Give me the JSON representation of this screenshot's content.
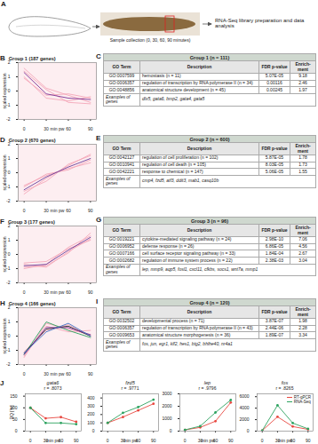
{
  "schematic": {
    "label": "A",
    "sample_text": "Sample collection (0, 30, 60, 90 minutes)",
    "library_text": "RNA-Seq library preparation and data analysis"
  },
  "chart_data": [
    {
      "label": "B",
      "type": "line",
      "title": "Group 1 (187 genes)",
      "x_label": "min pw",
      "y_label": "scaled expression",
      "x": [
        0,
        30,
        60,
        90
      ],
      "xlim": [
        -8,
        98
      ],
      "xticks": [
        0,
        30,
        60,
        90
      ],
      "ylim": [
        -2,
        2
      ],
      "yticks": [
        -2,
        -1,
        0,
        1,
        2
      ],
      "series": [
        {
          "color": "#f4a7b9",
          "values": [
            1.6,
            0.2,
            -0.3,
            -0.8
          ]
        },
        {
          "color": "#f4a7b9",
          "values": [
            1.0,
            -0.5,
            -0.7,
            -0.4
          ]
        },
        {
          "color": "#f4a7b9",
          "values": [
            1.4,
            0.1,
            -0.8,
            -0.9
          ]
        },
        {
          "color": "#f4a7b9",
          "values": [
            0.9,
            -0.3,
            -0.2,
            -0.5
          ]
        },
        {
          "color": "#7b3294",
          "values": [
            1.3,
            -0.2,
            -0.5,
            -0.6
          ]
        }
      ]
    },
    {
      "label": "D",
      "type": "line",
      "title": "Group 2 (670 genes)",
      "x_label": "min pw",
      "y_label": "scaled expression",
      "x": [
        0,
        30,
        60,
        90
      ],
      "xlim": [
        -8,
        98
      ],
      "xticks": [
        0,
        30,
        60,
        90
      ],
      "ylim": [
        -2,
        2
      ],
      "yticks": [
        -2,
        -1,
        0,
        1,
        2
      ],
      "series": [
        {
          "color": "#f4a7b9",
          "values": [
            -1.5,
            -0.4,
            0.5,
            1.3
          ]
        },
        {
          "color": "#f4a7b9",
          "values": [
            -1.0,
            -0.1,
            0.2,
            0.9
          ]
        },
        {
          "color": "#f4a7b9",
          "values": [
            -1.3,
            -0.6,
            0.6,
            1.2
          ]
        },
        {
          "color": "#f4a7b9",
          "values": [
            -0.9,
            -0.2,
            0.3,
            0.7
          ]
        },
        {
          "color": "#6a3d9a",
          "values": [
            -1.2,
            -0.3,
            0.4,
            1.0
          ]
        }
      ]
    },
    {
      "label": "F",
      "type": "line",
      "title": "Group 3 (177 genes)",
      "x_label": "min pw",
      "y_label": "scaled expression",
      "x": [
        0,
        30,
        60,
        90
      ],
      "xlim": [
        -8,
        98
      ],
      "xticks": [
        0,
        30,
        60,
        90
      ],
      "ylim": [
        -2,
        2
      ],
      "yticks": [
        -2,
        -1,
        0,
        1,
        2
      ],
      "series": [
        {
          "color": "#f4a7b9",
          "values": [
            -0.9,
            -0.8,
            0.1,
            1.5
          ]
        },
        {
          "color": "#f4a7b9",
          "values": [
            -0.6,
            -0.5,
            0.4,
            1.0
          ]
        },
        {
          "color": "#f4a7b9",
          "values": [
            -1.0,
            -0.7,
            0.5,
            1.3
          ]
        },
        {
          "color": "#f4a7b9",
          "values": [
            -0.7,
            -0.9,
            0.2,
            1.1
          ]
        },
        {
          "color": "#6a3d9a",
          "values": [
            -0.8,
            -0.7,
            0.3,
            1.2
          ]
        }
      ]
    },
    {
      "label": "H",
      "type": "line",
      "title": "Group 4 (166 genes)",
      "x_label": "min pw",
      "y_label": "scaled expression",
      "x": [
        0,
        30,
        60,
        90
      ],
      "xlim": [
        -8,
        98
      ],
      "xticks": [
        0,
        30,
        60,
        90
      ],
      "ylim": [
        -2,
        2
      ],
      "yticks": [
        -2,
        -1,
        0,
        1,
        2
      ],
      "series": [
        {
          "color": "#f4a7b9",
          "values": [
            -1.5,
            0.9,
            0.5,
            0.1
          ]
        },
        {
          "color": "#f4a7b9",
          "values": [
            -1.1,
            0.4,
            0.8,
            0.0
          ]
        },
        {
          "color": "#f4a7b9",
          "values": [
            -1.4,
            0.7,
            0.3,
            0.4
          ]
        },
        {
          "color": "#2ca25f",
          "values": [
            -1.3,
            1.0,
            0.4,
            -0.1
          ]
        },
        {
          "color": "#222222",
          "values": [
            -1.2,
            0.5,
            0.7,
            0.0
          ]
        },
        {
          "color": "#7b3294",
          "values": [
            -1.3,
            0.6,
            0.6,
            0.1
          ]
        },
        {
          "color": "#3a6fc4",
          "values": [
            -1.2,
            0.3,
            0.9,
            0.0
          ]
        }
      ]
    },
    {
      "label": "J",
      "type": "line",
      "title": "gata6",
      "subtitle": "r = .8073",
      "x_label": "min pw",
      "y_label": "RQ [%]",
      "x": [
        0,
        30,
        60,
        90
      ],
      "xlim": [
        -10,
        100
      ],
      "xticks": [
        0,
        30,
        60,
        90
      ],
      "ylim": [
        0,
        160
      ],
      "yticks": [
        0,
        50,
        100,
        150
      ],
      "series": [
        {
          "name": "RT-qPCR",
          "color": "#e8473f",
          "marker": "circle",
          "values": [
            100,
            55,
            60,
            40
          ]
        },
        {
          "name": "RNA-Seq",
          "color": "#2ca25f",
          "marker": "circle",
          "values": [
            100,
            35,
            35,
            30
          ]
        }
      ]
    },
    {
      "type": "line",
      "title": "fzd5",
      "subtitle": "r = .9771",
      "x_label": "min pw",
      "x": [
        0,
        30,
        60,
        90
      ],
      "xlim": [
        -10,
        100
      ],
      "xticks": [
        0,
        30,
        60,
        90
      ],
      "ylim": [
        0,
        450
      ],
      "yticks": [
        0,
        100,
        200,
        300,
        400
      ],
      "series": [
        {
          "name": "RT-qPCR",
          "color": "#e8473f",
          "marker": "circle",
          "values": [
            100,
            170,
            250,
            330
          ]
        },
        {
          "name": "RNA-Seq",
          "color": "#2ca25f",
          "marker": "circle",
          "values": [
            100,
            220,
            290,
            380
          ]
        }
      ]
    },
    {
      "type": "line",
      "title": "lep",
      "subtitle": "r = .9796",
      "x_label": "min pw",
      "x": [
        0,
        30,
        60,
        90
      ],
      "xlim": [
        -10,
        100
      ],
      "xticks": [
        0,
        30,
        60,
        90
      ],
      "ylim": [
        0,
        3000
      ],
      "yticks": [
        0,
        1000,
        2000,
        3000
      ],
      "series": [
        {
          "name": "RT-qPCR",
          "color": "#e8473f",
          "marker": "circle",
          "values": [
            100,
            300,
            800,
            2300
          ]
        },
        {
          "name": "RNA-Seq",
          "color": "#2ca25f",
          "marker": "circle",
          "values": [
            100,
            400,
            1500,
            2500
          ]
        }
      ]
    },
    {
      "type": "line",
      "title": "fos",
      "subtitle": "r = .8265",
      "x_label": "min pw",
      "legend": "top-right",
      "x": [
        0,
        30,
        60,
        90
      ],
      "xlim": [
        -10,
        100
      ],
      "xticks": [
        0,
        30,
        60,
        90
      ],
      "ylim": [
        0,
        6500
      ],
      "yticks": [
        0,
        2000,
        4000,
        6000
      ],
      "series": [
        {
          "name": "RT-qPCR",
          "color": "#e8473f",
          "marker": "circle",
          "values": [
            100,
            2500,
            800,
            300
          ]
        },
        {
          "name": "RNA-Seq",
          "color": "#2ca25f",
          "marker": "circle",
          "values": [
            100,
            4500,
            1400,
            400
          ]
        }
      ]
    }
  ],
  "tables": [
    {
      "label": "C",
      "title": "Group 1 (n = 111)",
      "columns": [
        "GO Term",
        "Description",
        "FDR p-value",
        "Enrich-ment"
      ],
      "rows": [
        [
          "GO:0007599",
          "hemostasis (n = 11)",
          "5.07E-05",
          "9.18"
        ],
        [
          "GO:0006357",
          "regulation of transcription by RNA polymerase II (n = 34)",
          "0.00116",
          "2.46"
        ],
        [
          "GO:0048856",
          "anatomical structure development (n = 45)",
          "0.00245",
          "1.97"
        ]
      ],
      "examples_label": "Examples of genes",
      "examples": "dlx5, gata6, bmp2, gata4, gata5"
    },
    {
      "label": "E",
      "title": "Group 2 (n = 600)",
      "columns": [
        "GO Term",
        "Description",
        "FDR p-value",
        "Enrich-ment"
      ],
      "rows": [
        [
          "GO:0042127",
          "regulation of cell proliferation (n = 102)",
          "5.87E-05",
          "1.78"
        ],
        [
          "GO:0010941",
          "regulation of cell death (n = 105)",
          "8.03E-05",
          "1.73"
        ],
        [
          "GO:0042221",
          "response to chemical (n = 147)",
          "5.06E-05",
          "1.55"
        ]
      ],
      "examples_label": "Examples of genes",
      "examples": "cmp4, fzd5, atf3, ddit3, mab1, casq10b"
    },
    {
      "label": "G",
      "title": "Group 3 (n = 96)",
      "columns": [
        "GO Term",
        "Description",
        "FDR p-value",
        "Enrich-ment"
      ],
      "rows": [
        [
          "GO:0019221",
          "cytokine-mediated signaling pathway (n = 24)",
          "2.98E-10",
          "7.06"
        ],
        [
          "GO:0006952",
          "defense response (n = 26)",
          "6.86E-05",
          "4.56"
        ],
        [
          "GO:0007166",
          "cell surface receptor signaling pathway (n = 33)",
          "1.84E-04",
          "2.67"
        ],
        [
          "GO:0002682",
          "regulation of immune system process (n = 22)",
          "2.38E-03",
          "3.04"
        ]
      ],
      "examples_label": "Examples of genes",
      "examples": "lep, mmp9, aqp5, fosl1, cxcl11, cfkbs, socs1, wnt7a, mmp1"
    },
    {
      "label": "I",
      "title": "Group 4 (n = 120)",
      "columns": [
        "GO Term",
        "Description",
        "FDR p-value",
        "Enrich-ment"
      ],
      "rows": [
        [
          "GO:0032502",
          "developmental process (n = 71)",
          "3.87E-07",
          "1.98"
        ],
        [
          "GO:0006357",
          "regulation of transcription by RNA polymerase II (n = 43)",
          "2.44E-06",
          "2.28"
        ],
        [
          "GO:0009653",
          "anatomical structure morphogenesis (n = 36)",
          "1.89E-07",
          "3.34"
        ]
      ],
      "examples_label": "Examples of genes",
      "examples": "fos, jun, egr1, klf2, hes1, btg2, bhlhe40, nr4a1"
    }
  ]
}
